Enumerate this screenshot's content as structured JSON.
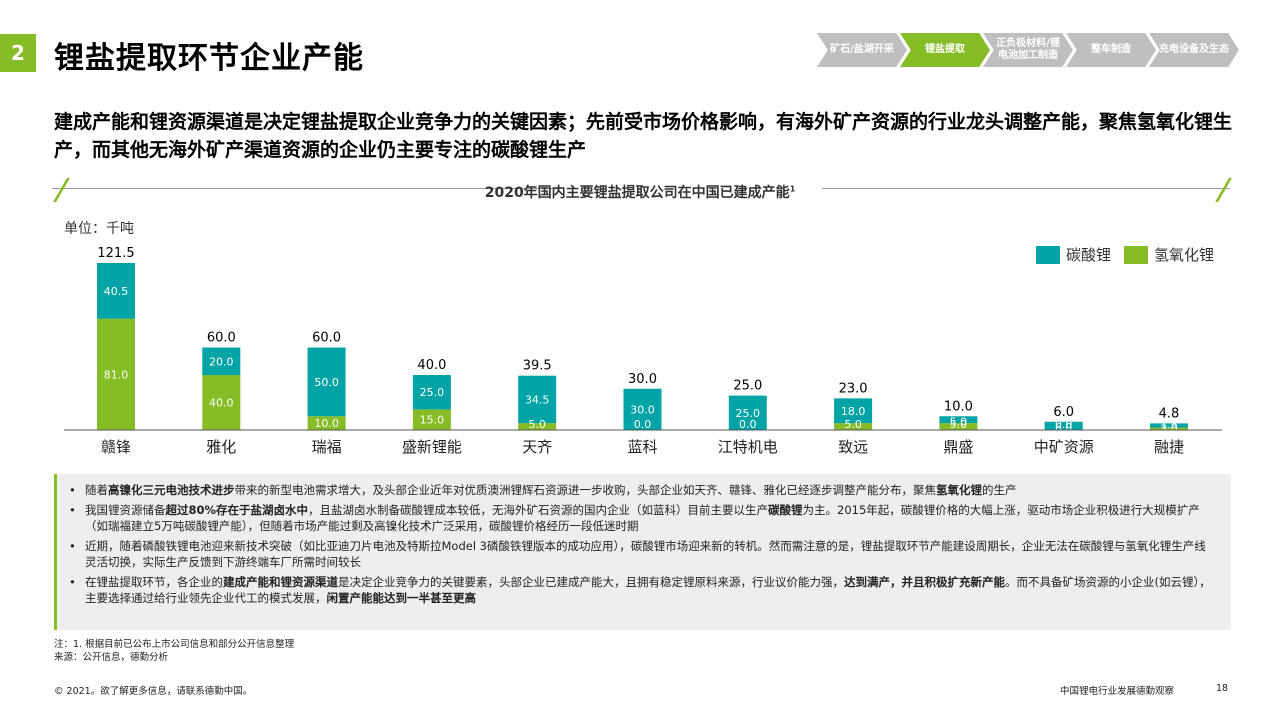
{
  "section_number": "2",
  "page_title": "锂盐提取环节企业产能",
  "steps": [
    {
      "label": "矿石/盐湖开采",
      "active": false
    },
    {
      "label": "锂盐提取",
      "active": true
    },
    {
      "label": "正负极材料/锂电池加工制造",
      "active": false
    },
    {
      "label": "整车制造",
      "active": false
    },
    {
      "label": "充电设备及生态",
      "active": false
    }
  ],
  "subtitle": "建成产能和锂资源渠道是决定锂盐提取企业竞争力的关键因素；先前受市场价格影响，有海外矿产资源的行业龙头调整产能，聚焦氢氧化锂生产，而其他无海外矿产渠道资源的企业仍主要专注的碳酸锂生产",
  "chart_title": "2020年国内主要锂盐提取公司在中国已建成产能",
  "chart_title_sup": "1",
  "unit": "单位：千吨",
  "colors": {
    "carbonate": "#00a3a6",
    "hydroxide": "#86bc25",
    "accent": "#86bc25"
  },
  "chart_data": {
    "type": "bar",
    "stacked": true,
    "categories": [
      "赣锋",
      "雅化",
      "瑞福",
      "盛新锂能",
      "天齐",
      "蓝科",
      "江特机电",
      "致远",
      "鼎盛",
      "中矿资源",
      "融捷"
    ],
    "series": [
      {
        "name": "氢氧化锂",
        "values": [
          81.0,
          40.0,
          10.0,
          15.0,
          5.0,
          0.0,
          0.0,
          5.0,
          5.0,
          0.0,
          1.8
        ]
      },
      {
        "name": "碳酸锂",
        "values": [
          40.5,
          20.0,
          50.0,
          25.0,
          34.5,
          30.0,
          25.0,
          18.0,
          5.0,
          6.0,
          3.0
        ]
      }
    ],
    "totals": [
      121.5,
      60.0,
      60.0,
      40.0,
      39.5,
      30.0,
      25.0,
      23.0,
      10.0,
      6.0,
      4.8
    ],
    "ylim": [
      0,
      125
    ],
    "legend_position": "top-right",
    "legend_order": [
      "碳酸锂",
      "氢氧化锂"
    ]
  },
  "notes": [
    [
      {
        "t": "随着"
      },
      {
        "t": "高镍化三元电池技术进步",
        "b": true
      },
      {
        "t": "带来的新型电池需求增大，及头部企业近年对优质澳洲锂辉石资源进一步收购，头部企业如天齐、赣锋、雅化已经逐步调整产能分布，聚焦"
      },
      {
        "t": "氢氧化锂",
        "b": true
      },
      {
        "t": "的生产"
      }
    ],
    [
      {
        "t": "我国锂资源储备"
      },
      {
        "t": "超过80%存在于盐湖卤水中",
        "b": true
      },
      {
        "t": "，且盐湖卤水制备碳酸锂成本较低，无海外矿石资源的国内企业（如蓝科）目前主要以生产"
      },
      {
        "t": "碳酸锂",
        "b": true
      },
      {
        "t": "为主。2015年起，碳酸锂价格的大幅上涨，驱动市场企业积极进行大规模扩产（如瑞福建立5万吨碳酸锂产能），但随着市场产能过剩及高镍化技术广泛采用，碳酸锂价格经历一段低迷时期"
      }
    ],
    [
      {
        "t": "近期，随着磷酸铁锂电池迎来新技术突破（如比亚迪刀片电池及特斯拉Model 3磷酸铁锂版本的成功应用），碳酸锂市场迎来新的转机。然而需注意的是，锂盐提取环节产能建设周期长，企业无法在碳酸锂与氢氧化锂生产线灵活切换，实际生产反馈到下游终端车厂所需时间较长"
      }
    ],
    [
      {
        "t": "在锂盐提取环节，各企业的"
      },
      {
        "t": "建成产能和锂资源渠道",
        "b": true
      },
      {
        "t": "是决定企业竞争力的关键要素，头部企业已建成产能大，且拥有稳定锂原料来源，行业议价能力强，"
      },
      {
        "t": "达到满产，并且积极扩充新产能",
        "b": true
      },
      {
        "t": "。而不具备矿场资源的小企业(如云锂），主要选择通过给行业领先企业代工的模式发展，"
      },
      {
        "t": "闲置产能能达到一半甚至更高",
        "b": true
      }
    ]
  ],
  "footnote_1": "注：1. 根据目前已公布上市公司信息和部分公开信息整理",
  "footnote_2": "来源：公开信息，德勤分析",
  "copyright": "© 2021。欲了解更多信息，请联系德勤中国。",
  "report_name": "中国锂电行业发展德勤观察",
  "page_number": "18"
}
